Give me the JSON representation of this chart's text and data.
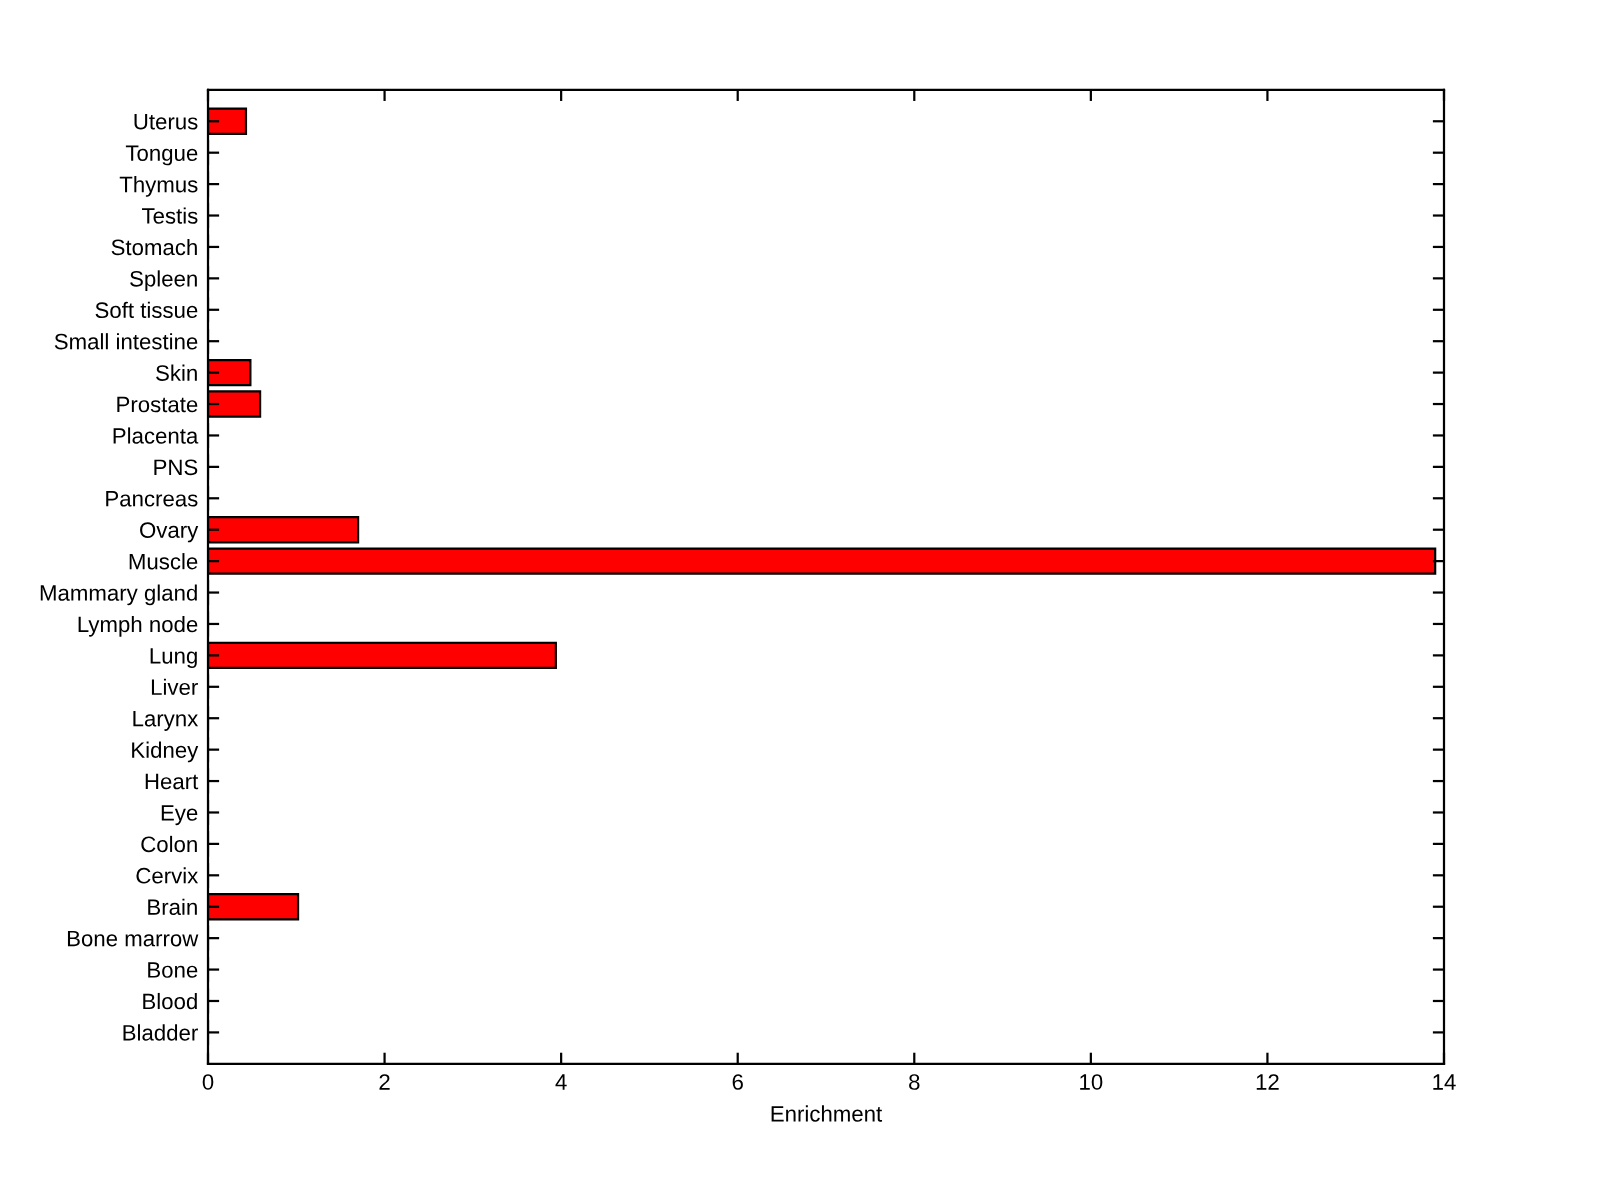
{
  "chart_data": {
    "type": "bar",
    "orientation": "horizontal",
    "xlabel": "Enrichment",
    "categories": [
      "Uterus",
      "Tongue",
      "Thymus",
      "Testis",
      "Stomach",
      "Spleen",
      "Soft tissue",
      "Small intestine",
      "Skin",
      "Prostate",
      "Placenta",
      "PNS",
      "Pancreas",
      "Ovary",
      "Muscle",
      "Mammary gland",
      "Lymph node",
      "Lung",
      "Liver",
      "Larynx",
      "Kidney",
      "Heart",
      "Eye",
      "Colon",
      "Cervix",
      "Brain",
      "Bone marrow",
      "Bone",
      "Blood",
      "Bladder"
    ],
    "values": [
      0.43,
      0,
      0,
      0,
      0,
      0,
      0,
      0,
      0.48,
      0.59,
      0,
      0,
      0,
      1.7,
      13.9,
      0,
      0,
      3.94,
      0,
      0,
      0,
      0,
      0,
      0,
      0,
      1.02,
      0,
      0,
      0,
      0
    ],
    "color": "#ff0000",
    "xlim": [
      0,
      14
    ],
    "xticks": [
      0,
      2,
      4,
      6,
      8,
      10,
      12,
      14
    ],
    "grid": false,
    "legend": false
  }
}
